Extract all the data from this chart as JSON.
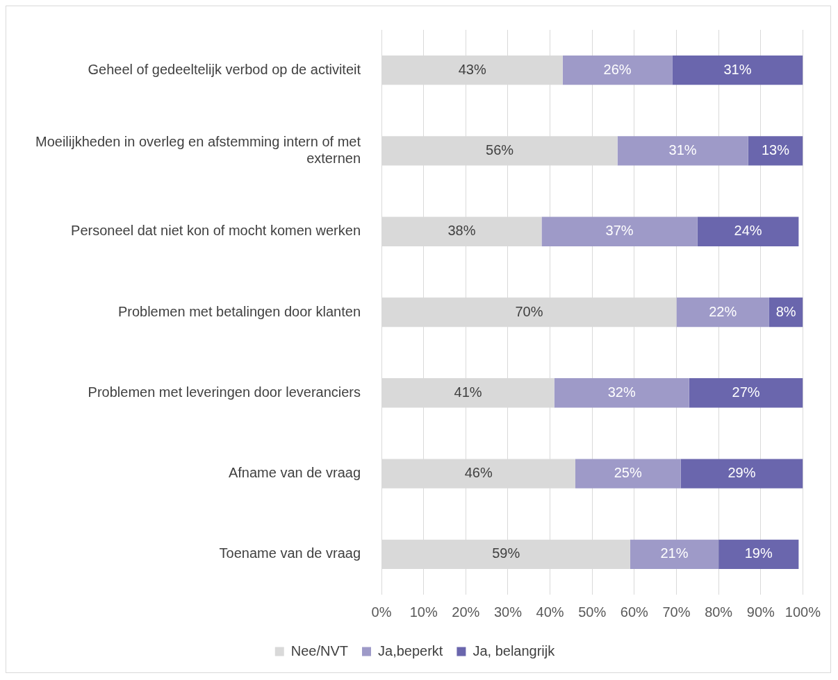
{
  "chart_data": {
    "type": "bar",
    "orientation": "horizontal",
    "stacked": true,
    "categories": [
      "Geheel of gedeeltelijk verbod op de activiteit",
      "Moeilijkheden in overleg en afstemming intern of met externen",
      "Personeel dat niet kon of mocht komen werken",
      "Problemen met betalingen door klanten",
      "Problemen met leveringen door leveranciers",
      "Afname van de vraag",
      "Toename van de vraag"
    ],
    "series": [
      {
        "name": "Nee/NVT",
        "color": "#d9d9d9",
        "values": [
          43,
          56,
          38,
          70,
          41,
          46,
          59
        ],
        "value_labels": [
          "43%",
          "56%",
          "38%",
          "70%",
          "41%",
          "46%",
          "59%"
        ]
      },
      {
        "name": "Ja,beperkt",
        "color": "#9e9ac8",
        "values": [
          26,
          31,
          37,
          22,
          32,
          25,
          21
        ],
        "value_labels": [
          "26%",
          "31%",
          "37%",
          "22%",
          "32%",
          "25%",
          "21%"
        ]
      },
      {
        "name": "Ja, belangrijk",
        "color": "#6a66ad",
        "values": [
          31,
          13,
          24,
          8,
          27,
          29,
          19
        ],
        "value_labels": [
          "31%",
          "13%",
          "24%",
          "8%",
          "27%",
          "29%",
          "19%"
        ]
      }
    ],
    "xlim": [
      0,
      100
    ],
    "xticks": [
      {
        "value": 0,
        "label": "0%"
      },
      {
        "value": 10,
        "label": "10%"
      },
      {
        "value": 20,
        "label": "20%"
      },
      {
        "value": 30,
        "label": "30%"
      },
      {
        "value": 40,
        "label": "40%"
      },
      {
        "value": 50,
        "label": "50%"
      },
      {
        "value": 60,
        "label": "60%"
      },
      {
        "value": 70,
        "label": "70%"
      },
      {
        "value": 80,
        "label": "80%"
      },
      {
        "value": 90,
        "label": "90%"
      },
      {
        "value": 100,
        "label": "100%"
      }
    ],
    "grid": "x",
    "legend": "bottom"
  }
}
